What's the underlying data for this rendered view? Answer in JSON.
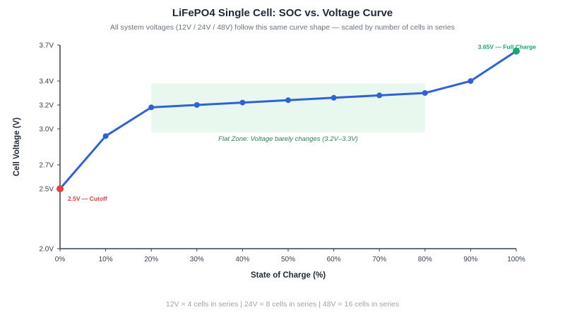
{
  "header": {
    "title": "LiFePO4 Single Cell: SOC vs. Voltage Curve",
    "subtitle": "All system voltages (12V / 24V / 48V) follow this same curve shape — scaled by number of cells in series"
  },
  "footer": {
    "note": "12V = 4 cells in series | 24V = 8 cells in series | 48V = 16 cells in series"
  },
  "colors": {
    "line": "#2f62d6",
    "cutoff": "#e53e3e",
    "full": "#1aa672",
    "flat_zone_fill": "#e8f8ee",
    "flat_zone_text": "#2f7d5c",
    "axis": "#374151"
  },
  "chart_data": {
    "type": "line",
    "title": "LiFePO4 Single Cell: SOC vs. Voltage Curve",
    "xlabel": "State of Charge (%)",
    "ylabel": "Cell Voltage (V)",
    "x": [
      0,
      10,
      20,
      30,
      40,
      50,
      60,
      70,
      80,
      90,
      100
    ],
    "series": [
      {
        "values": [
          2.5,
          2.94,
          3.18,
          3.2,
          3.22,
          3.24,
          3.26,
          3.28,
          3.3,
          3.4,
          3.65
        ]
      }
    ],
    "xlim": [
      0,
      100
    ],
    "ylim": [
      2.0,
      3.7
    ],
    "x_ticks": [
      0,
      10,
      20,
      30,
      40,
      50,
      60,
      70,
      80,
      90,
      100
    ],
    "x_tick_labels": [
      "0%",
      "10%",
      "20%",
      "30%",
      "40%",
      "50%",
      "60%",
      "70%",
      "80%",
      "90%",
      "100%"
    ],
    "y_ticks": [
      2.0,
      2.5,
      2.7,
      3.0,
      3.2,
      3.4,
      3.7
    ],
    "y_tick_labels": [
      "2.0V",
      "2.5V",
      "2.7V",
      "3.0V",
      "3.2V",
      "3.4V",
      "3.7V"
    ],
    "grid": false,
    "flat_zone": {
      "x_range": [
        20,
        80
      ],
      "y_range": [
        2.97,
        3.38
      ],
      "label": "Flat Zone: Voltage barely changes (3.2V–3.3V)"
    },
    "annotations": [
      {
        "x": 0,
        "y": 2.5,
        "label": "2.5V — Cutoff",
        "color": "#e53e3e"
      },
      {
        "x": 100,
        "y": 3.65,
        "label": "3.65V — Full Charge",
        "color": "#1aa672"
      }
    ]
  }
}
